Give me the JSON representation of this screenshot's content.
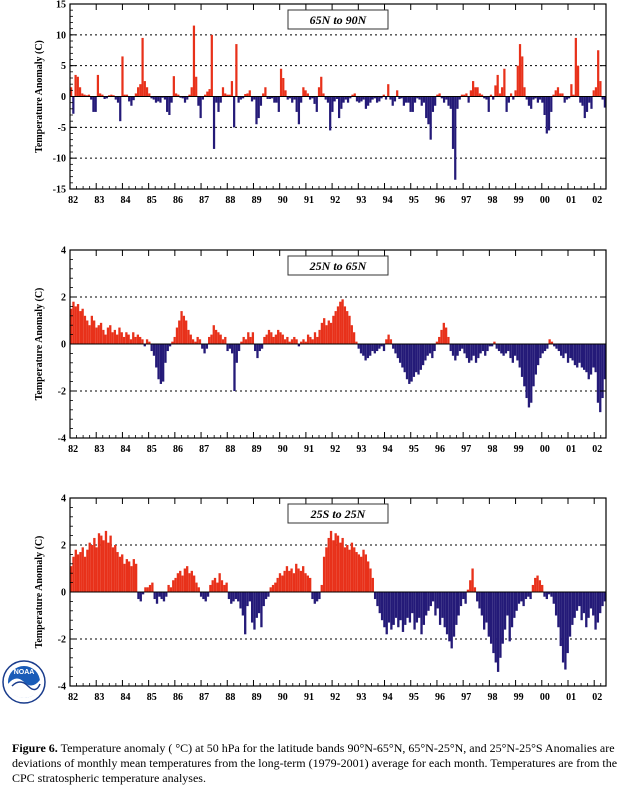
{
  "chart_data": [
    {
      "type": "bar",
      "title": "65N to 90N",
      "ylabel": "Temperature Anomaly (C)",
      "ylim": [
        -15,
        15
      ],
      "yticks": [
        -15,
        -10,
        -5,
        0,
        5,
        10,
        15
      ],
      "reference_lines": [
        -10,
        -5,
        5,
        10
      ],
      "x_tick_labels": [
        "82",
        "83",
        "84",
        "85",
        "86",
        "87",
        "88",
        "89",
        "90",
        "91",
        "92",
        "93",
        "94",
        "95",
        "96",
        "97",
        "98",
        "99",
        "00",
        "01",
        "02"
      ],
      "x_start_year": 1982,
      "x_end_year": 2002.45,
      "positive_color": "#e8311a",
      "negative_color": "#241a78",
      "values": [
        1.5,
        -2.8,
        3.5,
        3.2,
        1.5,
        0.5,
        0.3,
        0.2,
        0.3,
        -0.5,
        -2.5,
        -2.5,
        3.5,
        0.5,
        0.3,
        -0.4,
        -0.3,
        0.2,
        0.3,
        0.2,
        -0.5,
        -1.0,
        -4.0,
        6.5,
        0.3,
        0.3,
        -0.8,
        -1.5,
        -0.6,
        0.5,
        1.5,
        2.0,
        9.5,
        2.5,
        1.5,
        0.5,
        -0.3,
        -0.5,
        -1.0,
        -0.8,
        -1.0,
        -0.2,
        -0.5,
        -2.5,
        -3.0,
        -1.0,
        3.3,
        0.5,
        0.3,
        -0.2,
        -0.3,
        -1.0,
        -0.5,
        0.3,
        1.5,
        11.5,
        3.2,
        -1.5,
        -3.5,
        -0.5,
        0.3,
        0.8,
        1.2,
        10.0,
        -8.5,
        -1.0,
        -2.5,
        -1.0,
        1.5,
        0.5,
        0.3,
        0.3,
        2.5,
        -5.0,
        8.5,
        -1.0,
        -0.5,
        -0.3,
        0.4,
        0.5,
        1.0,
        -0.8,
        -0.5,
        -4.5,
        -3.5,
        -1.5,
        0.5,
        1.5,
        -0.4,
        -0.4,
        -0.3,
        -1.0,
        -1.0,
        -2.5,
        4.5,
        3.0,
        1.0,
        -0.5,
        -0.3,
        -1.0,
        -0.5,
        -2.5,
        -4.5,
        -1.0,
        1.5,
        1.0,
        0.5,
        -0.5,
        -0.3,
        -1.2,
        -2.5,
        1.5,
        3.2,
        0.5,
        -0.5,
        -1.0,
        -5.5,
        -2.5,
        -0.8,
        -0.4,
        -3.5,
        -2.0,
        -1.0,
        -0.5,
        -1.0,
        -0.3,
        0.3,
        0.5,
        -0.8,
        -1.0,
        -0.8,
        -0.5,
        -2.0,
        -1.5,
        -1.0,
        -0.5,
        -0.3,
        -1.0,
        -0.8,
        -0.3,
        0.3,
        -0.5,
        2.0,
        -0.5,
        -1.5,
        -0.8,
        1.0,
        -0.4,
        -0.3,
        -1.5,
        -1.0,
        -1.0,
        -2.5,
        -2.5,
        -1.0,
        -0.3,
        -0.5,
        -1.5,
        -1.0,
        -3.5,
        -4.5,
        -7.0,
        -2.5,
        -1.5,
        0.3,
        0.5,
        -0.3,
        -1.0,
        -0.5,
        -1.5,
        -2.0,
        -8.5,
        -13.5,
        -2.0,
        -0.5,
        0.3,
        0.3,
        0.5,
        -1.0,
        1.0,
        2.5,
        1.5,
        1.5,
        0.5,
        0.3,
        -0.3,
        -0.5,
        -2.5,
        0.3,
        -0.5,
        1.8,
        3.5,
        0.5,
        1.5,
        4.5,
        -2.5,
        -1.0,
        0.5,
        -0.5,
        1.0,
        5.0,
        8.5,
        6.5,
        1.5,
        -0.5,
        -1.5,
        -2.0,
        -0.5,
        -0.3,
        -1.0,
        -0.5,
        -1.0,
        -3.0,
        -6.0,
        -5.5,
        -2.5,
        0.3,
        1.0,
        1.5,
        0.5,
        0.5,
        -1.0,
        -0.5,
        -0.3,
        2.0,
        0.3,
        9.5,
        5.0,
        -1.0,
        -1.5,
        -3.5,
        -2.5,
        -1.0,
        -2.0,
        1.0,
        1.5,
        7.5,
        2.5,
        -0.5,
        -1.8
      ]
    },
    {
      "type": "bar",
      "title": "25N to 65N",
      "ylabel": "Temperature Anomaly (C)",
      "ylim": [
        -4,
        4
      ],
      "yticks": [
        -4,
        -2,
        0,
        2,
        4
      ],
      "reference_lines": [
        -2,
        2
      ],
      "x_tick_labels": [
        "82",
        "83",
        "84",
        "85",
        "86",
        "87",
        "88",
        "89",
        "90",
        "91",
        "92",
        "93",
        "94",
        "95",
        "96",
        "97",
        "98",
        "99",
        "00",
        "01",
        "02"
      ],
      "x_start_year": 1982,
      "x_end_year": 2002.45,
      "positive_color": "#e8311a",
      "negative_color": "#241a78",
      "values": [
        1.5,
        1.8,
        1.6,
        1.7,
        1.4,
        1.5,
        1.2,
        1.0,
        0.8,
        1.2,
        1.0,
        0.7,
        0.8,
        0.9,
        0.6,
        0.4,
        0.7,
        0.8,
        0.5,
        0.6,
        0.4,
        0.7,
        0.5,
        0.3,
        0.5,
        0.4,
        0.2,
        0.5,
        0.3,
        0.4,
        0.3,
        0.2,
        -0.1,
        0.2,
        0.1,
        -0.3,
        -0.5,
        -1.0,
        -1.5,
        -1.7,
        -1.6,
        -0.8,
        -0.3,
        -0.1,
        0.1,
        0.3,
        0.7,
        1.0,
        1.4,
        1.2,
        1.0,
        0.6,
        0.4,
        0.2,
        0.1,
        0.3,
        0.2,
        -0.2,
        -0.4,
        -0.2,
        0.3,
        0.4,
        0.8,
        0.6,
        0.5,
        0.4,
        0.2,
        0.3,
        -0.3,
        -0.2,
        -0.4,
        -2.0,
        -0.8,
        -0.3,
        0.1,
        0.3,
        0.2,
        0.5,
        0.3,
        0.5,
        -0.3,
        -0.6,
        -0.3,
        -0.2,
        0.3,
        0.4,
        0.6,
        0.5,
        0.3,
        0.4,
        0.6,
        0.5,
        0.4,
        0.2,
        0.3,
        0.1,
        0.2,
        0.3,
        0.2,
        -0.1,
        0.1,
        0.2,
        0.1,
        0.4,
        0.3,
        0.2,
        0.5,
        0.3,
        0.6,
        0.9,
        1.1,
        0.8,
        1.0,
        0.9,
        1.2,
        1.4,
        1.6,
        1.8,
        1.9,
        1.6,
        1.4,
        1.2,
        0.8,
        0.5,
        0.1,
        -0.2,
        -0.4,
        -0.5,
        -0.7,
        -0.6,
        -0.5,
        -0.3,
        -0.4,
        -0.3,
        -0.2,
        -0.1,
        -0.3,
        0.2,
        0.4,
        0.2,
        -0.2,
        -0.4,
        -0.6,
        -0.8,
        -1.0,
        -1.2,
        -1.5,
        -1.7,
        -1.6,
        -1.4,
        -1.2,
        -1.3,
        -1.1,
        -0.9,
        -0.7,
        -0.5,
        -0.4,
        -0.6,
        -0.3,
        0.1,
        0.3,
        0.6,
        0.9,
        0.7,
        0.3,
        -0.3,
        -0.5,
        -0.7,
        -0.5,
        -0.3,
        -0.2,
        -0.4,
        -0.6,
        -0.8,
        -0.7,
        -0.5,
        -0.8,
        -0.6,
        -0.4,
        -0.3,
        -0.5,
        -0.3,
        -0.1,
        -0.1,
        0.1,
        -0.2,
        -0.3,
        -0.4,
        -0.5,
        -0.4,
        -0.3,
        -0.6,
        -0.8,
        -0.5,
        -0.7,
        -1.0,
        -1.4,
        -1.8,
        -2.3,
        -2.7,
        -2.5,
        -1.8,
        -1.3,
        -0.9,
        -0.6,
        -0.4,
        -0.3,
        -0.2,
        0.2,
        0.1,
        -0.1,
        -0.2,
        -0.3,
        -0.5,
        -0.6,
        -0.4,
        -0.8,
        -0.6,
        -0.7,
        -0.9,
        -1.0,
        -0.8,
        -1.0,
        -1.1,
        -1.2,
        -1.5,
        -1.3,
        -1.0,
        -1.2,
        -2.5,
        -2.9,
        -2.3,
        -1.5
      ]
    },
    {
      "type": "bar",
      "title": "25S to 25N",
      "ylabel": "Temperature Anomaly (C)",
      "ylim": [
        -4,
        4
      ],
      "yticks": [
        -4,
        -2,
        0,
        2,
        4
      ],
      "reference_lines": [
        -2,
        2
      ],
      "x_tick_labels": [
        "82",
        "83",
        "84",
        "85",
        "86",
        "87",
        "88",
        "89",
        "90",
        "91",
        "92",
        "93",
        "94",
        "95",
        "96",
        "97",
        "98",
        "99",
        "00",
        "01",
        "02"
      ],
      "x_start_year": 1982,
      "x_end_year": 2002.45,
      "positive_color": "#e8311a",
      "negative_color": "#241a78",
      "values": [
        1.1,
        1.5,
        1.8,
        1.6,
        1.7,
        1.9,
        1.5,
        1.8,
        2.1,
        2.0,
        2.3,
        1.9,
        2.5,
        2.4,
        2.2,
        2.6,
        2.1,
        2.4,
        1.9,
        2.0,
        1.7,
        1.5,
        1.6,
        1.2,
        1.4,
        1.3,
        1.1,
        1.4,
        1.2,
        -0.3,
        -0.4,
        -0.1,
        0.2,
        0.2,
        0.3,
        0.4,
        -0.3,
        -0.5,
        -0.2,
        -0.3,
        -0.4,
        -0.2,
        0.3,
        0.2,
        0.5,
        0.6,
        0.8,
        0.9,
        0.7,
        1.0,
        1.1,
        0.8,
        0.9,
        0.7,
        0.4,
        0.2,
        -0.2,
        -0.3,
        -0.4,
        -0.2,
        0.3,
        0.5,
        0.6,
        0.4,
        0.8,
        0.5,
        0.3,
        0.4,
        -0.3,
        -0.5,
        -0.4,
        -0.3,
        -0.4,
        -0.7,
        -1.0,
        -1.8,
        -0.6,
        -0.4,
        -1.3,
        -1.6,
        -1.1,
        -0.9,
        -1.5,
        -0.6,
        -0.3,
        -0.2,
        0.2,
        0.3,
        0.4,
        0.6,
        0.8,
        0.7,
        0.9,
        1.1,
        0.9,
        1.0,
        0.8,
        1.2,
        1.0,
        0.9,
        1.1,
        0.8,
        0.7,
        0.6,
        -0.3,
        -0.5,
        -0.4,
        -0.3,
        0.3,
        1.5,
        1.9,
        2.3,
        2.6,
        2.2,
        2.5,
        2.4,
        2.1,
        2.3,
        1.9,
        2.0,
        1.8,
        2.1,
        1.9,
        1.7,
        1.6,
        1.5,
        1.8,
        1.6,
        1.3,
        1.0,
        0.6,
        -0.3,
        -0.6,
        -0.9,
        -1.2,
        -1.5,
        -1.8,
        -1.3,
        -1.6,
        -1.4,
        -1.1,
        -1.5,
        -1.2,
        -1.7,
        -1.4,
        -1.1,
        -1.3,
        -0.9,
        -1.6,
        -1.3,
        -1.1,
        -1.8,
        -1.4,
        -1.0,
        -0.8,
        -0.6,
        -0.4,
        -1.0,
        -0.7,
        -1.4,
        -1.1,
        -1.5,
        -1.8,
        -2.1,
        -2.4,
        -1.9,
        -1.4,
        -1.0,
        -0.6,
        -0.3,
        -0.5,
        0.1,
        0.5,
        1.0,
        0.2,
        -0.4,
        -0.7,
        -1.0,
        -1.6,
        -1.3,
        -1.9,
        -2.2,
        -2.6,
        -3.0,
        -3.4,
        -2.8,
        -2.2,
        -1.6,
        -1.0,
        -2.1,
        -1.5,
        -1.1,
        -0.8,
        -0.5,
        -0.4,
        -0.6,
        -0.3,
        -0.2,
        -0.3,
        0.3,
        0.6,
        0.7,
        0.5,
        0.3,
        -0.2,
        -0.3,
        -0.1,
        -0.2,
        -0.5,
        -1.0,
        -1.5,
        -2.3,
        -3.0,
        -3.3,
        -2.6,
        -1.9,
        -1.4,
        -1.1,
        -0.8,
        -0.6,
        -1.2,
        -0.9,
        -1.5,
        -1.1,
        -0.7,
        -1.0,
        -1.6,
        -1.3,
        -0.9,
        -0.6,
        -0.4
      ]
    }
  ],
  "caption": {
    "label": "Figure 6.",
    "text": "Temperature anomaly ( °C) at 50 hPa for the latitude bands 90°N-65°N, 65°N-25°N, and 25°N-25°S Anomalies are deviations of monthly mean temperatures from the long-term (1979-2001) average for each month.  Temperatures are from the CPC stratospheric temperature analyses."
  },
  "logo": {
    "text": "NOAA"
  }
}
